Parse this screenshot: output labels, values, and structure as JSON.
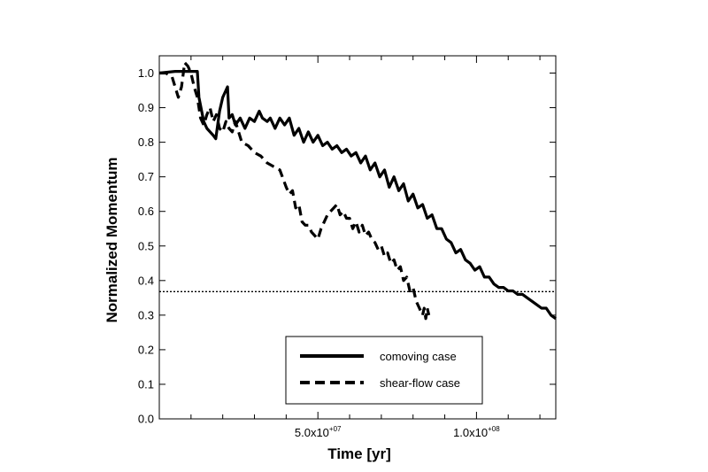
{
  "chart_data": {
    "type": "line",
    "xlabel": "Time [yr]",
    "ylabel": "Normalized Momentum",
    "xlim": [
      0,
      125000000
    ],
    "ylim": [
      0,
      1.05
    ],
    "x_ticks": [
      {
        "value": 50000000,
        "mantissa": "5.0x10",
        "exponent": "+07"
      },
      {
        "value": 100000000,
        "mantissa": "1.0x10",
        "exponent": "+08"
      }
    ],
    "y_ticks": [
      {
        "value": 0.0,
        "label": "0.0"
      },
      {
        "value": 0.1,
        "label": "0.1"
      },
      {
        "value": 0.2,
        "label": "0.2"
      },
      {
        "value": 0.3,
        "label": "0.3"
      },
      {
        "value": 0.4,
        "label": "0.4"
      },
      {
        "value": 0.5,
        "label": "0.5"
      },
      {
        "value": 0.6,
        "label": "0.6"
      },
      {
        "value": 0.7,
        "label": "0.7"
      },
      {
        "value": 0.8,
        "label": "0.8"
      },
      {
        "value": 0.9,
        "label": "0.9"
      },
      {
        "value": 1.0,
        "label": "1.0"
      }
    ],
    "minor_x_tick_step": 10000000,
    "reference_line": {
      "y": 0.368,
      "style": "dotted"
    },
    "legend_placement": "bottom-center",
    "series": [
      {
        "name": "comoving case",
        "style": "solid",
        "x": [
          0,
          5000000,
          10000000,
          12000000,
          12500000,
          14000000,
          15000000,
          17000000,
          17800000,
          19000000,
          20000000,
          21500000,
          22000000,
          23000000,
          24000000,
          25500000,
          27000000,
          28500000,
          30000000,
          31500000,
          32500000,
          34000000,
          35000000,
          36500000,
          38000000,
          39500000,
          41000000,
          42500000,
          44000000,
          45500000,
          47000000,
          48500000,
          50000000,
          51500000,
          53000000,
          54500000,
          56000000,
          57500000,
          59000000,
          60500000,
          62000000,
          63500000,
          65000000,
          66500000,
          68000000,
          69500000,
          71000000,
          72500000,
          74000000,
          75500000,
          77000000,
          78500000,
          80000000,
          81500000,
          83000000,
          84500000,
          86000000,
          87500000,
          89000000,
          90500000,
          92000000,
          93500000,
          95000000,
          96500000,
          98000000,
          99500000,
          101000000,
          102500000,
          104000000,
          105500000,
          107000000,
          108500000,
          110000000,
          111500000,
          113000000,
          114500000,
          116000000,
          117500000,
          119000000,
          120500000,
          122000000,
          123500000,
          125000000
        ],
        "y": [
          1.0,
          1.005,
          1.005,
          1.005,
          0.93,
          0.86,
          0.84,
          0.82,
          0.81,
          0.89,
          0.93,
          0.96,
          0.87,
          0.88,
          0.85,
          0.87,
          0.84,
          0.87,
          0.86,
          0.89,
          0.87,
          0.86,
          0.87,
          0.84,
          0.87,
          0.85,
          0.87,
          0.82,
          0.84,
          0.8,
          0.83,
          0.8,
          0.82,
          0.79,
          0.8,
          0.78,
          0.79,
          0.77,
          0.78,
          0.76,
          0.77,
          0.74,
          0.76,
          0.72,
          0.74,
          0.7,
          0.72,
          0.67,
          0.7,
          0.66,
          0.68,
          0.63,
          0.65,
          0.61,
          0.62,
          0.58,
          0.59,
          0.55,
          0.55,
          0.52,
          0.51,
          0.48,
          0.49,
          0.46,
          0.45,
          0.43,
          0.44,
          0.41,
          0.41,
          0.39,
          0.38,
          0.38,
          0.37,
          0.37,
          0.36,
          0.36,
          0.35,
          0.34,
          0.33,
          0.32,
          0.32,
          0.3,
          0.29
        ]
      },
      {
        "name": "shear-flow case",
        "style": "dashed",
        "x": [
          0,
          2000000,
          4000000,
          6000000,
          7000000,
          8000000,
          9000000,
          10000000,
          11000000,
          12000000,
          13000000,
          14000000,
          15000000,
          16000000,
          17000000,
          18000000,
          19000000,
          20000000,
          21000000,
          22000000,
          23000000,
          24000000,
          26000000,
          28000000,
          30000000,
          32000000,
          34000000,
          36000000,
          38000000,
          40000000,
          41000000,
          42000000,
          43000000,
          44000000,
          45000000,
          46000000,
          47000000,
          48000000,
          49000000,
          50000000,
          51000000,
          52000000,
          53000000,
          54000000,
          55000000,
          56000000,
          57000000,
          58000000,
          59000000,
          60000000,
          61000000,
          62000000,
          63000000,
          64000000,
          65000000,
          66000000,
          67000000,
          68000000,
          69000000,
          70000000,
          71000000,
          72000000,
          73000000,
          74000000,
          75000000,
          76000000,
          77000000,
          78000000,
          79000000,
          80000000,
          81000000,
          82000000,
          82500000,
          83000000,
          83500000,
          84000000,
          84500000,
          85000000
        ],
        "y": [
          1.0,
          1.0,
          0.99,
          0.93,
          0.96,
          1.03,
          1.02,
          1.0,
          0.96,
          0.93,
          0.87,
          0.85,
          0.88,
          0.9,
          0.86,
          0.88,
          0.84,
          0.83,
          0.86,
          0.84,
          0.83,
          0.86,
          0.8,
          0.79,
          0.77,
          0.76,
          0.74,
          0.73,
          0.72,
          0.67,
          0.65,
          0.66,
          0.61,
          0.62,
          0.57,
          0.56,
          0.56,
          0.54,
          0.53,
          0.52,
          0.55,
          0.57,
          0.59,
          0.6,
          0.61,
          0.62,
          0.59,
          0.6,
          0.58,
          0.58,
          0.55,
          0.57,
          0.54,
          0.56,
          0.53,
          0.54,
          0.52,
          0.51,
          0.49,
          0.5,
          0.47,
          0.48,
          0.45,
          0.46,
          0.43,
          0.44,
          0.4,
          0.41,
          0.37,
          0.38,
          0.34,
          0.32,
          0.31,
          0.3,
          0.32,
          0.29,
          0.32,
          0.3
        ]
      }
    ]
  }
}
